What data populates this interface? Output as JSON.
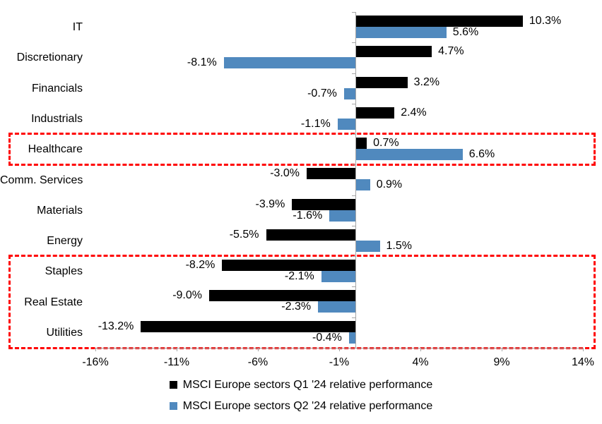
{
  "chart_data": {
    "type": "bar",
    "orientation": "horizontal",
    "title": "",
    "categories": [
      "IT",
      "Discretionary",
      "Financials",
      "Industrials",
      "Healthcare",
      "Comm. Services",
      "Materials",
      "Energy",
      "Staples",
      "Real Estate",
      "Utilities"
    ],
    "series": [
      {
        "name": "MSCI Europe sectors Q1 '24 relative performance",
        "color": "#000000",
        "values": [
          10.3,
          4.7,
          3.2,
          2.4,
          0.7,
          -3.0,
          -3.9,
          -5.5,
          -8.2,
          -9.0,
          -13.2
        ],
        "labels": [
          "10.3%",
          "4.7%",
          "3.2%",
          "2.4%",
          "0.7%",
          "-3.0%",
          "-3.9%",
          "-5.5%",
          "-8.2%",
          "-9.0%",
          "-13.2%"
        ]
      },
      {
        "name": "MSCI Europe sectors Q2 '24 relative performance",
        "color": "#5089be",
        "values": [
          5.6,
          -8.1,
          -0.7,
          -1.1,
          6.6,
          0.9,
          -1.6,
          1.5,
          -2.1,
          -2.3,
          -0.4
        ],
        "labels": [
          "5.6%",
          "-8.1%",
          "-0.7%",
          "-1.1%",
          "6.6%",
          "0.9%",
          "-1.6%",
          "1.5%",
          "-2.1%",
          "-2.3%",
          "-0.4%"
        ]
      }
    ],
    "x_axis": {
      "min": -16,
      "max": 14,
      "tick_step": 5,
      "unit": "%",
      "ticks": [
        {
          "value": -16,
          "label": "-16%"
        },
        {
          "value": -11,
          "label": "-11%"
        },
        {
          "value": -6,
          "label": "-6%"
        },
        {
          "value": -1,
          "label": "-1%"
        },
        {
          "value": 4,
          "label": "4%"
        },
        {
          "value": 9,
          "label": "9%"
        },
        {
          "value": 14,
          "label": "14%"
        }
      ]
    },
    "axis_color": "#a6a6a6",
    "grid": false,
    "legend_position": "bottom",
    "highlights": [
      {
        "categories": [
          "Healthcare"
        ],
        "first_row": 4,
        "last_row": 4,
        "color": "#ff0000"
      },
      {
        "categories": [
          "Staples",
          "Real Estate",
          "Utilities"
        ],
        "first_row": 8,
        "last_row": 10,
        "color": "#ff0000"
      }
    ]
  }
}
